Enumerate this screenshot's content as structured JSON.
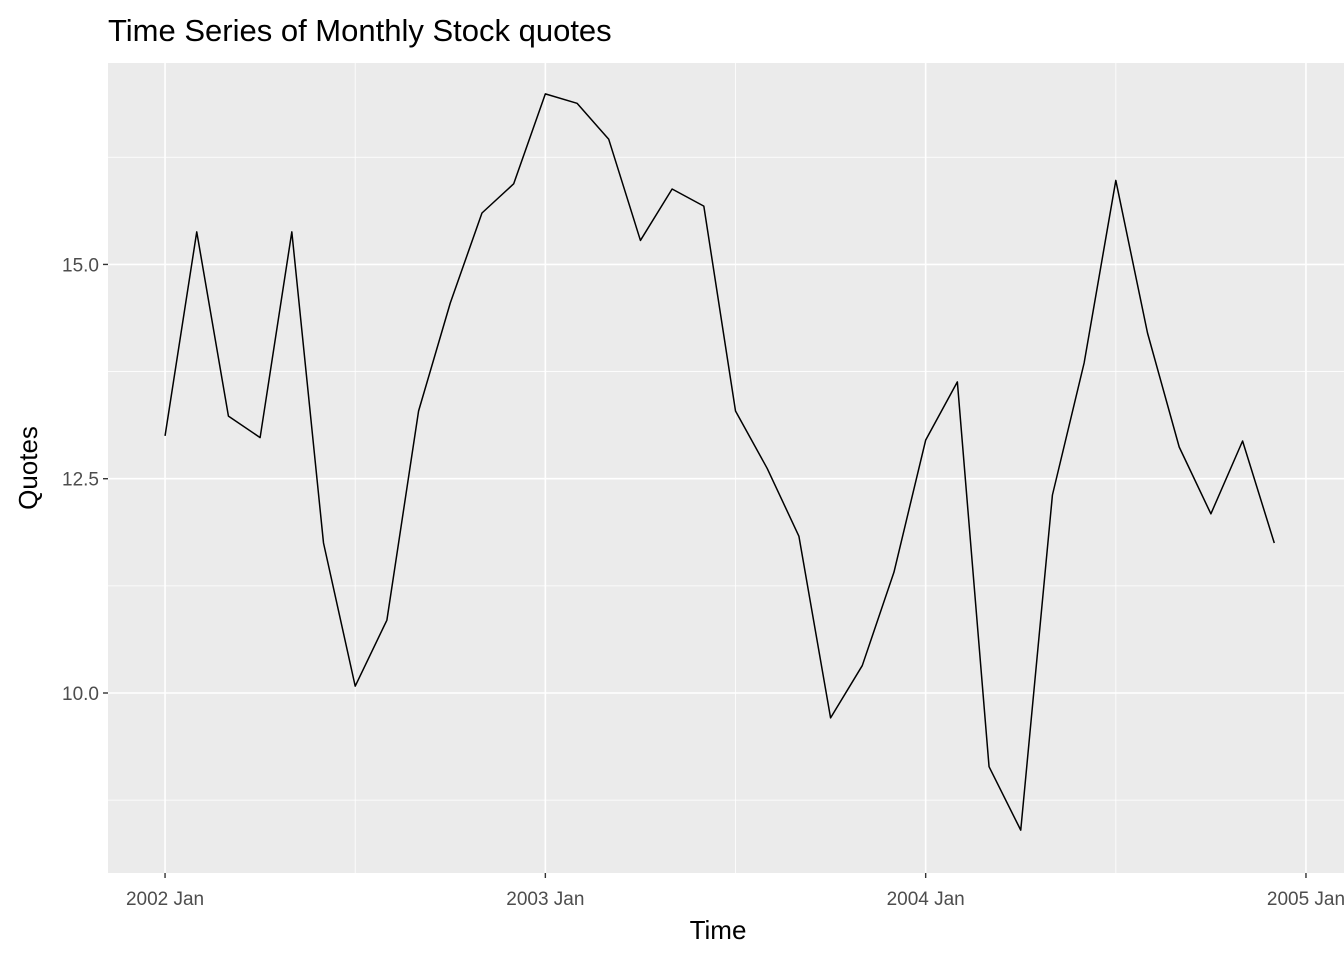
{
  "chart_data": {
    "type": "line",
    "title": "Time Series of Monthly Stock quotes",
    "xlabel": "Time",
    "ylabel": "Quotes",
    "x_ticks": [
      {
        "label": "2002 Jan",
        "value": 2002.0
      },
      {
        "label": "2003 Jan",
        "value": 2003.0
      },
      {
        "label": "2004 Jan",
        "value": 2004.0
      },
      {
        "label": "2005 Jan",
        "value": 2005.0
      }
    ],
    "y_ticks": [
      {
        "label": "10.0",
        "value": 10.0
      },
      {
        "label": "12.5",
        "value": 12.5
      },
      {
        "label": "15.0",
        "value": 15.0
      }
    ],
    "xlim": [
      2001.85,
      2005.1
    ],
    "ylim": [
      7.9,
      17.35
    ],
    "grid": true,
    "legend": "none",
    "series": [
      {
        "color": "#000000",
        "x": [
          "2002-01",
          "2002-02",
          "2002-03",
          "2002-04",
          "2002-05",
          "2002-06",
          "2002-07",
          "2002-08",
          "2002-09",
          "2002-10",
          "2002-11",
          "2002-12",
          "2003-01",
          "2003-02",
          "2003-03",
          "2003-04",
          "2003-05",
          "2003-06",
          "2003-07",
          "2003-08",
          "2003-09",
          "2003-10",
          "2003-11",
          "2003-12",
          "2004-01",
          "2004-02",
          "2004-03",
          "2004-04",
          "2004-05",
          "2004-06",
          "2004-07",
          "2004-08",
          "2004-09",
          "2004-10",
          "2004-11",
          "2004-12"
        ],
        "values": [
          13.0,
          15.38,
          13.23,
          12.98,
          15.38,
          11.75,
          10.08,
          10.85,
          13.29,
          14.55,
          15.6,
          15.94,
          16.99,
          16.88,
          16.46,
          15.28,
          15.88,
          15.68,
          13.29,
          12.62,
          11.83,
          9.71,
          10.32,
          11.41,
          12.95,
          13.63,
          9.14,
          8.4,
          12.31,
          13.85,
          15.98,
          14.2,
          12.87,
          12.09,
          12.94,
          11.75
        ]
      }
    ]
  }
}
